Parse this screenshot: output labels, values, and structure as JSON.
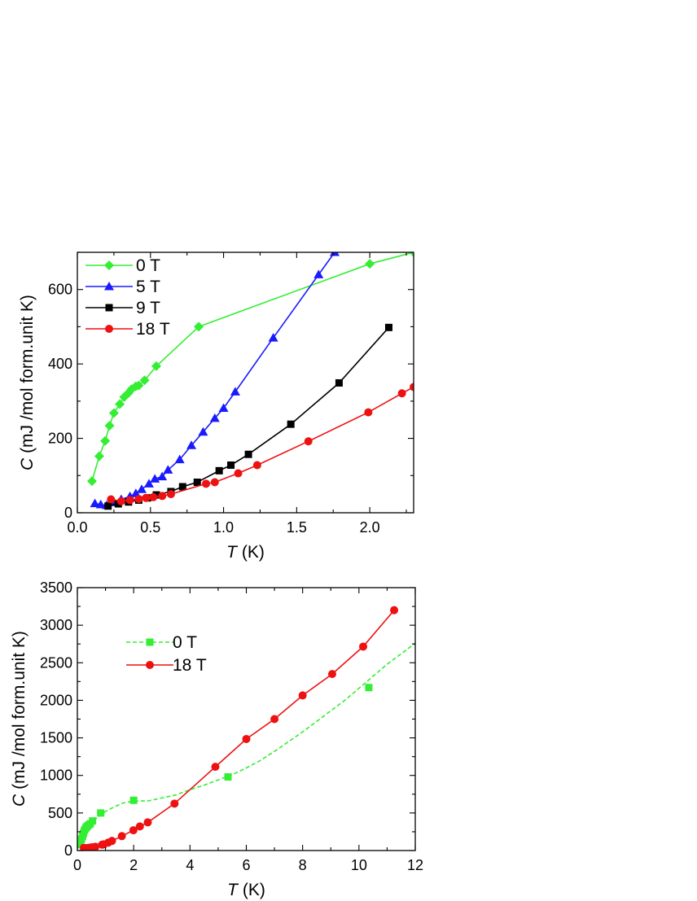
{
  "chart_data": [
    {
      "type": "line",
      "xlabel_italic": "T",
      "xlabel_rest": " (K)",
      "ylabel_italic": "C",
      "ylabel_rest": " (mJ /mol form.unit K)",
      "xlim": [
        0.0,
        2.3
      ],
      "ylim": [
        0,
        700
      ],
      "xticks": [
        "0.0",
        "0.5",
        "1.0",
        "1.5",
        "2.0"
      ],
      "yticks": [
        "0",
        "200",
        "400",
        "600"
      ],
      "grid": false,
      "legend_position": "top-left",
      "series": [
        {
          "name": "0 T",
          "color": "#33ee33",
          "marker": "diamond",
          "line": "solid",
          "x": [
            0.1,
            0.15,
            0.19,
            0.22,
            0.25,
            0.29,
            0.32,
            0.35,
            0.37,
            0.4,
            0.42,
            0.46,
            0.54,
            0.83,
            2.0,
            2.3
          ],
          "y": [
            85,
            152,
            193,
            234,
            268,
            292,
            311,
            322,
            332,
            340,
            342,
            356,
            394,
            500,
            669,
            700
          ]
        },
        {
          "name": "5 T",
          "color": "#1a1aff",
          "marker": "triangle",
          "line": "solid",
          "x": [
            0.12,
            0.16,
            0.2,
            0.25,
            0.3,
            0.36,
            0.4,
            0.44,
            0.49,
            0.53,
            0.58,
            0.62,
            0.7,
            0.78,
            0.86,
            0.94,
            1.0,
            1.08,
            1.34,
            1.65,
            1.76
          ],
          "y": [
            25,
            22,
            20,
            28,
            36,
            44,
            52,
            63,
            78,
            91,
            97,
            115,
            143,
            181,
            217,
            254,
            281,
            325,
            470,
            640,
            700
          ]
        },
        {
          "name": "9 T",
          "color": "#000000",
          "marker": "square",
          "line": "solid",
          "x": [
            0.21,
            0.28,
            0.35,
            0.42,
            0.48,
            0.54,
            0.64,
            0.72,
            0.82,
            0.97,
            1.05,
            1.17,
            1.46,
            1.79,
            2.13
          ],
          "y": [
            18,
            24,
            29,
            34,
            40,
            48,
            57,
            70,
            82,
            113,
            128,
            157,
            238,
            349,
            498
          ]
        },
        {
          "name": "18 T",
          "color": "#ee1111",
          "marker": "circle",
          "line": "solid",
          "x": [
            0.23,
            0.3,
            0.36,
            0.42,
            0.47,
            0.52,
            0.58,
            0.64,
            0.88,
            0.94,
            1.1,
            1.23,
            1.58,
            1.99,
            2.22,
            2.3
          ],
          "y": [
            36,
            31,
            34,
            37,
            40,
            42,
            45,
            50,
            78,
            82,
            106,
            128,
            192,
            270,
            321,
            338
          ]
        }
      ]
    },
    {
      "type": "line",
      "xlabel_italic": "T",
      "xlabel_rest": " (K)",
      "ylabel_italic": "C",
      "ylabel_rest": " (mJ /mol form.unit K)",
      "xlim": [
        0,
        12
      ],
      "ylim": [
        0,
        3500
      ],
      "xticks": [
        "0",
        "2",
        "4",
        "6",
        "8",
        "10",
        "12"
      ],
      "yticks": [
        "0",
        "500",
        "1000",
        "1500",
        "2000",
        "2500",
        "3000",
        "3500"
      ],
      "grid": false,
      "legend_position": "upper-left",
      "series": [
        {
          "name": "0 T",
          "color": "#33ee33",
          "marker": "square",
          "line": "dashed",
          "curve_x": [
            0.05,
            0.1,
            0.15,
            0.2,
            0.25,
            0.3,
            0.35,
            0.4,
            0.5,
            0.6,
            0.8,
            1.0,
            1.3,
            1.6,
            2.0,
            2.5,
            3.0,
            3.5,
            4.0,
            4.5,
            5.0,
            5.5,
            6.0,
            6.5,
            7.0,
            7.5,
            8.0,
            8.5,
            9.0,
            9.5,
            10.0,
            10.5,
            11.0,
            11.5,
            12.0
          ],
          "curve_y": [
            30,
            80,
            160,
            210,
            255,
            295,
            325,
            345,
            380,
            410,
            460,
            520,
            580,
            630,
            660,
            660,
            700,
            740,
            810,
            870,
            940,
            1010,
            1100,
            1200,
            1320,
            1450,
            1580,
            1720,
            1860,
            2000,
            2160,
            2320,
            2480,
            2620,
            2760
          ],
          "marker_x": [
            0.1,
            0.15,
            0.19,
            0.22,
            0.25,
            0.29,
            0.32,
            0.35,
            0.4,
            0.46,
            0.54,
            0.83,
            2.0,
            5.35,
            10.35
          ],
          "marker_y": [
            85,
            152,
            193,
            234,
            268,
            292,
            311,
            322,
            340,
            356,
            394,
            500,
            669,
            980,
            2170
          ]
        },
        {
          "name": "18 T",
          "color": "#ee1111",
          "marker": "circle",
          "line": "solid",
          "x": [
            0.23,
            0.3,
            0.36,
            0.42,
            0.47,
            0.52,
            0.58,
            0.64,
            0.88,
            0.94,
            1.1,
            1.23,
            1.58,
            1.99,
            2.22,
            2.5,
            3.45,
            4.9,
            6.0,
            7.0,
            8.0,
            9.05,
            10.15,
            11.25
          ],
          "y": [
            36,
            31,
            34,
            37,
            40,
            42,
            45,
            50,
            78,
            82,
            106,
            128,
            192,
            270,
            321,
            375,
            625,
            1115,
            1485,
            1750,
            2065,
            2350,
            2715,
            3200
          ]
        }
      ]
    }
  ]
}
